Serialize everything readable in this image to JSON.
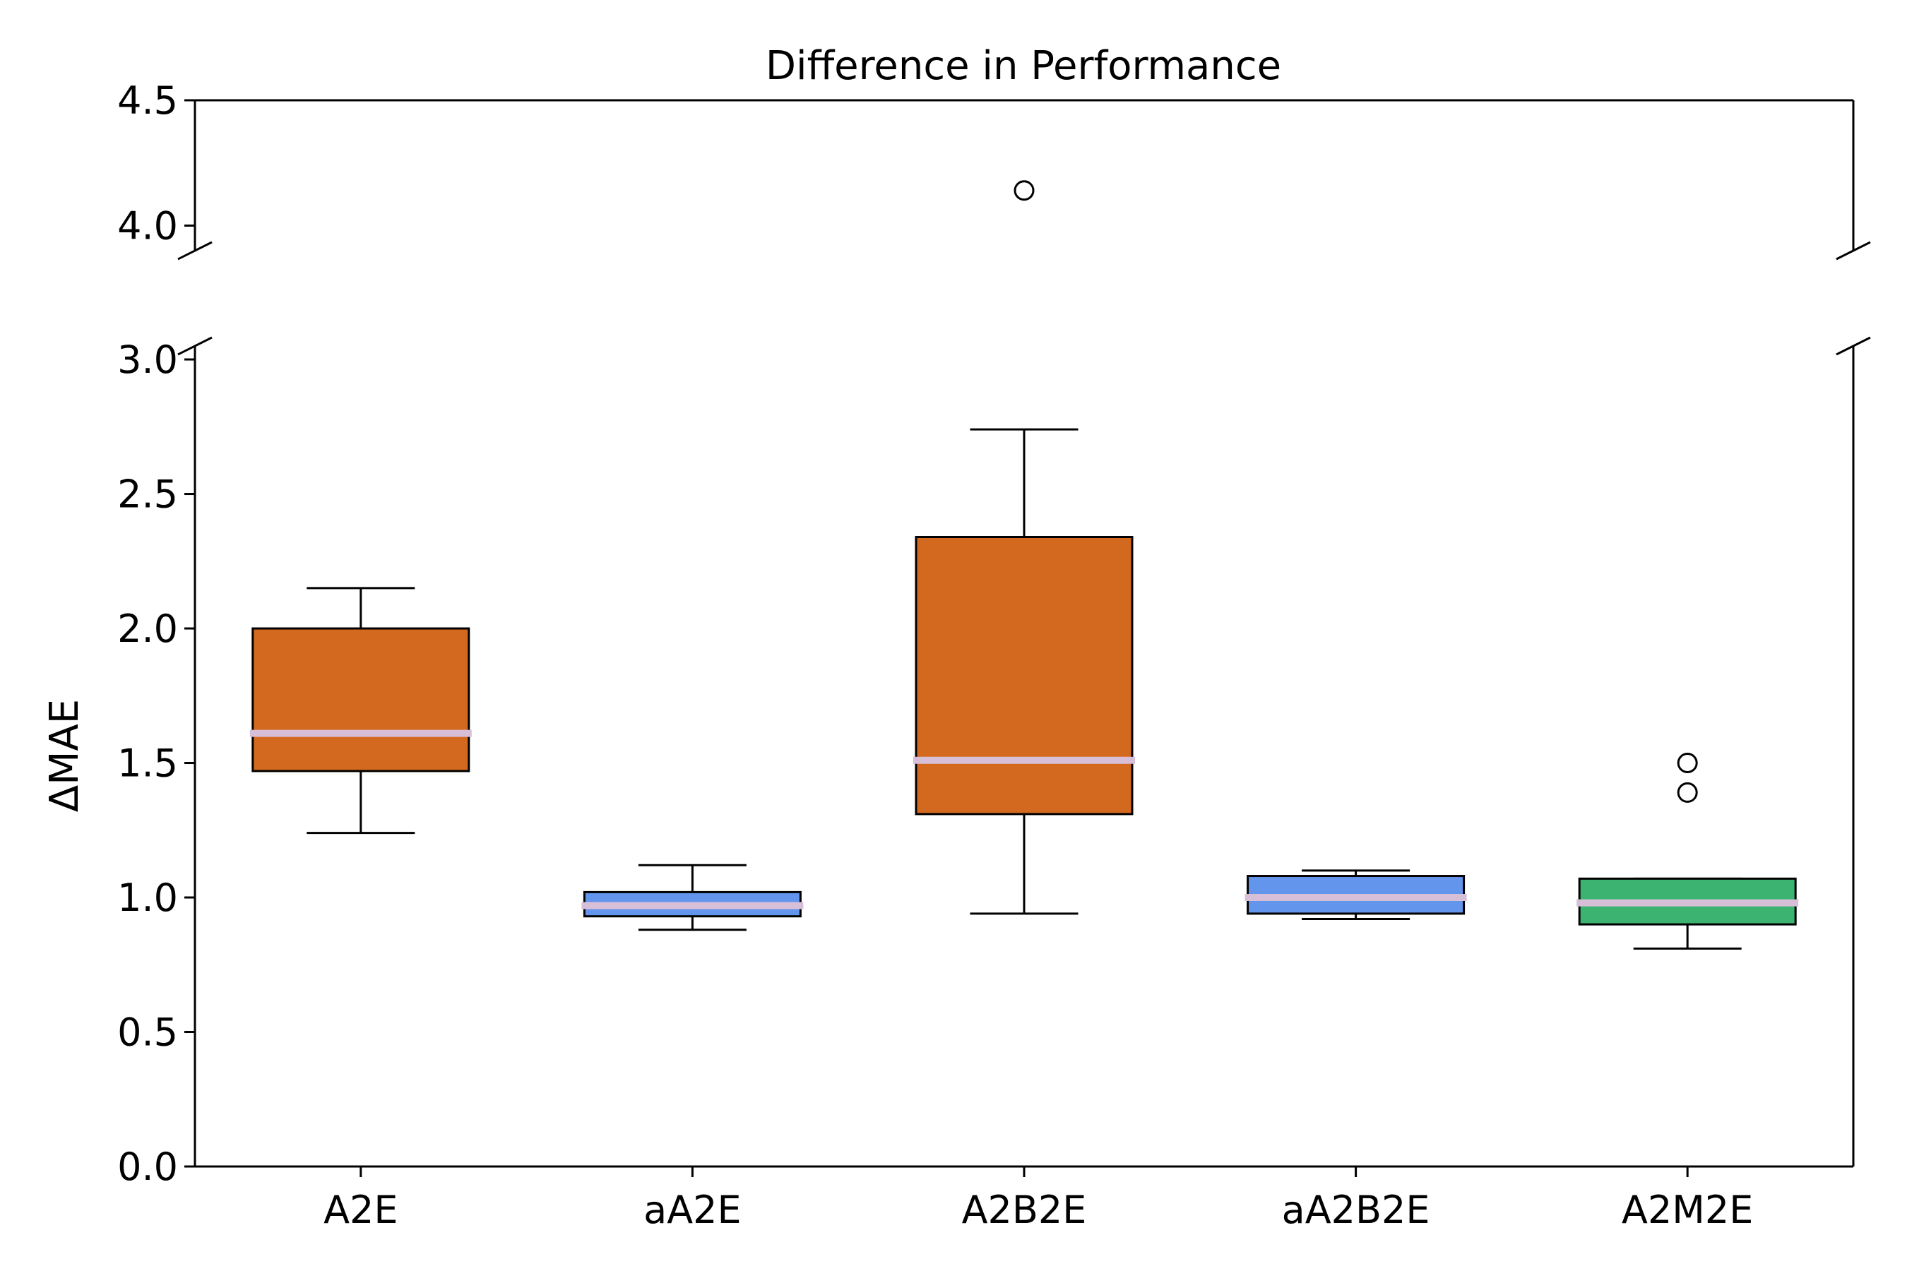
{
  "chart_data": {
    "type": "boxplot",
    "title": "Difference in Performance",
    "xlabel": "",
    "ylabel": "ΔMAE",
    "categories": [
      "A2E",
      "aA2E",
      "A2B2E",
      "aA2B2E",
      "A2M2E"
    ],
    "y_axis_broken": true,
    "ylim_lower": [
      0.0,
      3.05
    ],
    "ylim_upper": [
      3.9,
      4.5
    ],
    "yticks_lower": [
      "0.0",
      "0.5",
      "1.0",
      "1.5",
      "2.0",
      "2.5",
      "3.0"
    ],
    "yticks_upper": [
      "4.0",
      "4.5"
    ],
    "median_color": "#d8bfd8",
    "boxes": [
      {
        "label": "A2E",
        "color": "#d2691e",
        "whisker_low": 1.24,
        "q1": 1.47,
        "median": 1.61,
        "q3": 2.0,
        "whisker_high": 2.15,
        "fliers": []
      },
      {
        "label": "aA2E",
        "color": "#6495ed",
        "whisker_low": 0.88,
        "q1": 0.93,
        "median": 0.97,
        "q3": 1.02,
        "whisker_high": 1.12,
        "fliers": []
      },
      {
        "label": "A2B2E",
        "color": "#d2691e",
        "whisker_low": 0.94,
        "q1": 1.31,
        "median": 1.51,
        "q3": 2.34,
        "whisker_high": 2.74,
        "fliers": [
          4.14
        ]
      },
      {
        "label": "aA2B2E",
        "color": "#6495ed",
        "whisker_low": 0.92,
        "q1": 0.94,
        "median": 1.0,
        "q3": 1.08,
        "whisker_high": 1.1,
        "fliers": []
      },
      {
        "label": "A2M2E",
        "color": "#3cb371",
        "whisker_low": 0.81,
        "q1": 0.9,
        "median": 0.98,
        "q3": 1.07,
        "whisker_high": 1.07,
        "fliers": [
          1.39,
          1.5
        ]
      }
    ]
  }
}
